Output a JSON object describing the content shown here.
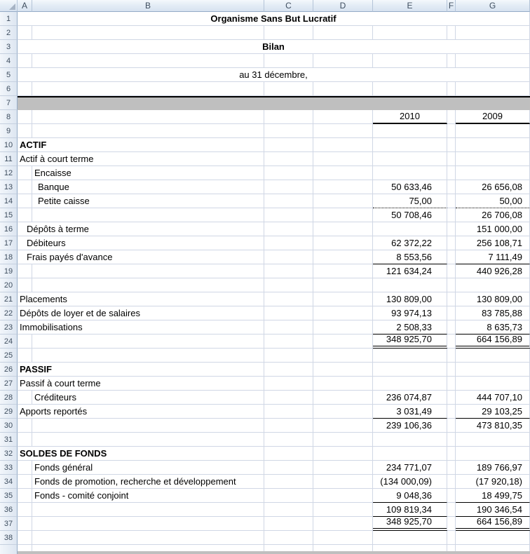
{
  "sheet": {
    "column_headers": [
      "A",
      "B",
      "C",
      "D",
      "E",
      "F",
      "G"
    ],
    "year_left": "2010",
    "year_right": "2009",
    "colors": {
      "band_gray": "#BFBFBF",
      "gridline": "#D0D7E5",
      "header_fill": "#DCE6F1",
      "header_text": "#3F4E5F",
      "border_black": "#000000"
    },
    "rows": [
      {
        "n": 1,
        "kind": "title",
        "label": "Organisme Sans But Lucratif",
        "bold": true
      },
      {
        "n": 2,
        "kind": "empty"
      },
      {
        "n": 3,
        "kind": "title",
        "label": "Bilan",
        "bold": true
      },
      {
        "n": 4,
        "kind": "empty"
      },
      {
        "n": 5,
        "kind": "title",
        "label": "au 31 décembre,",
        "bold": false
      },
      {
        "n": 6,
        "kind": "empty"
      },
      {
        "n": 7,
        "kind": "band"
      },
      {
        "n": 8,
        "kind": "years",
        "e": "2010",
        "g": "2009",
        "u": "medium"
      },
      {
        "n": 9,
        "kind": "empty"
      },
      {
        "n": 10,
        "kind": "data",
        "label": "ACTIF",
        "pos": "A",
        "indent": 0,
        "bold": true
      },
      {
        "n": 11,
        "kind": "data",
        "label": "Actif à court terme",
        "pos": "A",
        "indent": 0
      },
      {
        "n": 12,
        "kind": "data",
        "label": "Encaisse",
        "pos": "B",
        "indent": 0
      },
      {
        "n": 13,
        "kind": "data",
        "label": "Banque",
        "pos": "B",
        "indent": 1,
        "e": "50 633,46",
        "g": "26 656,08"
      },
      {
        "n": 14,
        "kind": "data",
        "label": "Petite caisse",
        "pos": "B",
        "indent": 1,
        "e": "75,00",
        "g": "50,00",
        "u": "dotted"
      },
      {
        "n": 15,
        "kind": "data",
        "e": "50 708,46",
        "g": "26 706,08"
      },
      {
        "n": 16,
        "kind": "data",
        "label": "Dépôts à terme",
        "pos": "A",
        "indent": 1,
        "g": "151 000,00"
      },
      {
        "n": 17,
        "kind": "data",
        "label": "Débiteurs",
        "pos": "A",
        "indent": 1,
        "e": "62 372,22",
        "g": "256 108,71"
      },
      {
        "n": 18,
        "kind": "data",
        "label": "Frais payés d'avance",
        "pos": "A",
        "indent": 1,
        "e": "8 553,56",
        "g": "7 111,49",
        "u": "thin"
      },
      {
        "n": 19,
        "kind": "data",
        "e": "121 634,24",
        "g": "440 926,28"
      },
      {
        "n": 20,
        "kind": "empty"
      },
      {
        "n": 21,
        "kind": "data",
        "label": "Placements",
        "pos": "A",
        "indent": 0,
        "e": "130 809,00",
        "g": "130 809,00"
      },
      {
        "n": 22,
        "kind": "data",
        "label": "Dépôts de loyer et de salaires",
        "pos": "A",
        "indent": 0,
        "e": "93 974,13",
        "g": "83 785,88"
      },
      {
        "n": 23,
        "kind": "data",
        "label": "Immobilisations",
        "pos": "A",
        "indent": 0,
        "e": "2 508,33",
        "g": "8 635,73",
        "u": "thin"
      },
      {
        "n": 24,
        "kind": "data",
        "e": "348 925,70",
        "g": "664 156,89",
        "u": "double"
      },
      {
        "n": 25,
        "kind": "empty"
      },
      {
        "n": 26,
        "kind": "data",
        "label": "PASSIF",
        "pos": "A",
        "indent": 0,
        "bold": true
      },
      {
        "n": 27,
        "kind": "data",
        "label": "Passif à court terme",
        "pos": "A",
        "indent": 0
      },
      {
        "n": 28,
        "kind": "data",
        "label": "Créditeurs",
        "pos": "B",
        "indent": 0,
        "e": "236 074,87",
        "g": "444 707,10"
      },
      {
        "n": 29,
        "kind": "data",
        "label": "Apports reportés",
        "pos": "A",
        "indent": 0,
        "e": "3 031,49",
        "g": "29 103,25",
        "u": "thin"
      },
      {
        "n": 30,
        "kind": "data",
        "e": "239 106,36",
        "g": "473 810,35"
      },
      {
        "n": 31,
        "kind": "empty"
      },
      {
        "n": 32,
        "kind": "data",
        "label": "SOLDES DE FONDS",
        "pos": "A",
        "indent": 0,
        "bold": true
      },
      {
        "n": 33,
        "kind": "data",
        "label": "Fonds général",
        "pos": "B",
        "indent": 0,
        "e": "234 771,07",
        "g": "189 766,97"
      },
      {
        "n": 34,
        "kind": "data",
        "label": "Fonds de promotion, recherche et développement",
        "pos": "B",
        "indent": 0,
        "e": "(134 000,09)",
        "g": "(17 920,18)"
      },
      {
        "n": 35,
        "kind": "data",
        "label": "Fonds - comité conjoint",
        "pos": "B",
        "indent": 0,
        "e": "9 048,36",
        "g": "18 499,75",
        "u": "thin"
      },
      {
        "n": 36,
        "kind": "data",
        "e": "109 819,34",
        "g": "190 346,54",
        "u": "thin"
      },
      {
        "n": 37,
        "kind": "data",
        "e": "348 925,70",
        "g": "664 156,89",
        "u": "double"
      },
      {
        "n": 38,
        "kind": "empty"
      }
    ]
  }
}
